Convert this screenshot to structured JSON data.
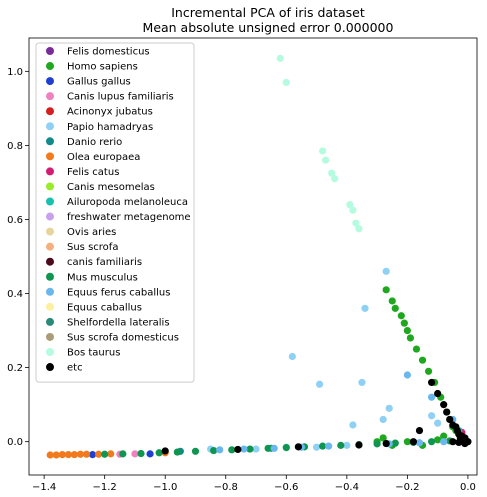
{
  "chart_data": {
    "type": "scatter",
    "title": "Incremental PCA of iris dataset",
    "subtitle": "Mean absolute unsigned error 0.000000",
    "xlabel": "",
    "ylabel": "",
    "xlim": [
      -1.45,
      0.03
    ],
    "ylim": [
      -0.09,
      1.09
    ],
    "xticks": [
      -1.4,
      -1.2,
      -1.0,
      -0.8,
      -0.6,
      -0.4,
      -0.2,
      0.0
    ],
    "xtick_labels": [
      "−1.4",
      "−1.2",
      "−1.0",
      "−0.8",
      "−0.6",
      "−0.4",
      "−0.2",
      "0.0"
    ],
    "yticks": [
      0.0,
      0.2,
      0.4,
      0.6,
      0.8,
      1.0
    ],
    "ytick_labels": [
      "0.0",
      "0.2",
      "0.4",
      "0.6",
      "0.8",
      "1.0"
    ],
    "grid": false,
    "legend_position": "upper-left",
    "series": [
      {
        "name": "Felis domesticus",
        "color": "#7b2a9a",
        "points": []
      },
      {
        "name": "Homo sapiens",
        "color": "#1fa81f",
        "points": [
          [
            -0.27,
            0.41
          ],
          [
            -0.25,
            0.38
          ],
          [
            -0.24,
            0.36
          ],
          [
            -0.22,
            0.34
          ],
          [
            -0.21,
            0.32
          ],
          [
            -0.2,
            0.3
          ],
          [
            -0.19,
            0.28
          ],
          [
            -0.17,
            0.25
          ],
          [
            -0.15,
            0.22
          ],
          [
            -0.13,
            0.19
          ],
          [
            -0.11,
            0.16
          ],
          [
            -0.09,
            0.12
          ],
          [
            -0.07,
            0.08
          ],
          [
            -0.06,
            0.06
          ],
          [
            -0.05,
            0.04
          ],
          [
            -0.04,
            0.03
          ],
          [
            -0.03,
            0.02
          ],
          [
            -0.02,
            0.01
          ],
          [
            -0.3,
            0.0
          ],
          [
            -0.25,
            -0.01
          ],
          [
            -0.2,
            0.0
          ],
          [
            -0.15,
            -0.01
          ],
          [
            -0.28,
            0.01
          ],
          [
            -0.1,
            0.005
          ],
          [
            -0.08,
            0.015
          ]
        ]
      },
      {
        "name": "Gallus gallus",
        "color": "#1f3fcf",
        "points": [
          [
            -1.24,
            -0.035
          ],
          [
            -1.05,
            -0.033
          ]
        ]
      },
      {
        "name": "Canis lupus familiaris",
        "color": "#ee82c0",
        "points": [
          [
            -1.15,
            -0.034
          ],
          [
            -1.1,
            -0.033
          ],
          [
            -0.02,
            0.01
          ]
        ]
      },
      {
        "name": "Acinonyx jubatus",
        "color": "#d61e1e",
        "points": [
          [
            -0.02,
            0.02
          ]
        ]
      },
      {
        "name": "Papio hamadryas",
        "color": "#8fd0f5",
        "points": [
          [
            -0.27,
            0.46
          ],
          [
            -0.34,
            0.36
          ],
          [
            -0.58,
            0.23
          ],
          [
            -0.35,
            0.16
          ],
          [
            -0.49,
            0.155
          ],
          [
            -0.26,
            0.09
          ],
          [
            -0.28,
            0.06
          ],
          [
            -0.38,
            0.045
          ],
          [
            -0.12,
            0.07
          ],
          [
            -0.1,
            0.05
          ],
          [
            -0.85,
            -0.02
          ],
          [
            -0.7,
            -0.02
          ],
          [
            -0.6,
            -0.015
          ],
          [
            -0.5,
            -0.015
          ],
          [
            -0.4,
            -0.01
          ]
        ]
      },
      {
        "name": "Danio rerio",
        "color": "#138a8a",
        "points": [
          [
            -0.95,
            -0.026
          ],
          [
            -0.65,
            -0.018
          ]
        ]
      },
      {
        "name": "Olea europaea",
        "color": "#f27a1e",
        "points": [
          [
            -1.38,
            -0.036
          ],
          [
            -1.36,
            -0.036
          ],
          [
            -1.34,
            -0.035
          ],
          [
            -1.32,
            -0.035
          ],
          [
            -1.3,
            -0.035
          ],
          [
            -1.28,
            -0.034
          ],
          [
            -1.26,
            -0.034
          ],
          [
            -1.22,
            -0.034
          ],
          [
            -1.18,
            -0.033
          ],
          [
            -1.0,
            -0.03
          ]
        ]
      },
      {
        "name": "Felis catus",
        "color": "#d21e72",
        "points": [
          [
            -0.02,
            0.025
          ]
        ]
      },
      {
        "name": "Canis mesomelas",
        "color": "#98ec2a",
        "points": []
      },
      {
        "name": "Ailuropoda melanoleuca",
        "color": "#18c0b0",
        "points": [
          [
            -0.03,
            0.03
          ]
        ]
      },
      {
        "name": "freshwater metagenome",
        "color": "#c8a0ee",
        "points": []
      },
      {
        "name": "Ovis aries",
        "color": "#e8d49a",
        "points": []
      },
      {
        "name": "Sus scrofa",
        "color": "#f5b07e",
        "points": []
      },
      {
        "name": "canis familiaris",
        "color": "#4a0a1a",
        "points": []
      },
      {
        "name": "Mus musculus",
        "color": "#0e9650",
        "points": [
          [
            -1.2,
            -0.034
          ],
          [
            -1.14,
            -0.033
          ],
          [
            -1.08,
            -0.032
          ],
          [
            -1.02,
            -0.03
          ],
          [
            -0.96,
            -0.028
          ],
          [
            -0.9,
            -0.026
          ],
          [
            -0.84,
            -0.024
          ],
          [
            -0.78,
            -0.022
          ],
          [
            -0.72,
            -0.02
          ],
          [
            -0.66,
            -0.018
          ],
          [
            -0.6,
            -0.016
          ],
          [
            -0.54,
            -0.014
          ],
          [
            -0.48,
            -0.012
          ],
          [
            -0.42,
            -0.01
          ],
          [
            -0.36,
            -0.008
          ],
          [
            -0.3,
            -0.006
          ],
          [
            -0.24,
            -0.004
          ],
          [
            -0.18,
            -0.002
          ],
          [
            -0.12,
            0.0
          ],
          [
            -0.06,
            0.002
          ]
        ]
      },
      {
        "name": "Equus ferus caballus",
        "color": "#6ab7ee",
        "points": [
          [
            -0.82,
            -0.022
          ],
          [
            -0.74,
            -0.02
          ],
          [
            -0.64,
            -0.018
          ],
          [
            -0.55,
            -0.015
          ],
          [
            -0.46,
            -0.012
          ],
          [
            -0.36,
            -0.009
          ],
          [
            -0.26,
            -0.006
          ],
          [
            -0.16,
            -0.003
          ],
          [
            -0.08,
            0.0
          ],
          [
            -0.2,
            0.18
          ],
          [
            -0.12,
            0.12
          ],
          [
            -0.05,
            0.06
          ],
          [
            -0.01,
            0.01
          ]
        ]
      },
      {
        "name": "Equus caballus",
        "color": "#fdf0a0",
        "points": []
      },
      {
        "name": "Shelfordella lateralis",
        "color": "#2a8a78",
        "points": []
      },
      {
        "name": "Sus scrofa domesticus",
        "color": "#ab9c78",
        "points": []
      },
      {
        "name": "Bos taurus",
        "color": "#b4fbe0",
        "points": [
          [
            -0.62,
            1.035
          ],
          [
            -0.6,
            0.97
          ],
          [
            -0.48,
            0.785
          ],
          [
            -0.47,
            0.76
          ],
          [
            -0.45,
            0.725
          ],
          [
            -0.44,
            0.71
          ],
          [
            -0.39,
            0.64
          ],
          [
            -0.38,
            0.625
          ],
          [
            -0.37,
            0.59
          ],
          [
            -0.36,
            0.575
          ]
        ]
      },
      {
        "name": "etc",
        "color": "#000000",
        "points": [
          [
            -1.0,
            -0.025
          ],
          [
            -0.76,
            -0.021
          ],
          [
            -0.56,
            -0.014
          ],
          [
            -0.36,
            -0.009
          ],
          [
            -0.27,
            -0.005
          ],
          [
            -0.18,
            0.0
          ],
          [
            -0.16,
            0.03
          ],
          [
            -0.12,
            0.16
          ],
          [
            -0.1,
            0.13
          ],
          [
            -0.08,
            0.1
          ],
          [
            -0.07,
            0.08
          ],
          [
            -0.06,
            0.06
          ],
          [
            -0.05,
            0.045
          ],
          [
            -0.04,
            0.04
          ],
          [
            -0.035,
            0.03
          ],
          [
            -0.03,
            0.02
          ],
          [
            -0.02,
            0.015
          ],
          [
            -0.01,
            0.01
          ],
          [
            0.0,
            0.0
          ],
          [
            -0.01,
            -0.005
          ],
          [
            -0.05,
            0.0
          ],
          [
            -0.03,
            -0.002
          ],
          [
            -0.015,
            0.005
          ],
          [
            -0.005,
            0.002
          ],
          [
            -0.025,
            0.01
          ]
        ]
      }
    ]
  }
}
